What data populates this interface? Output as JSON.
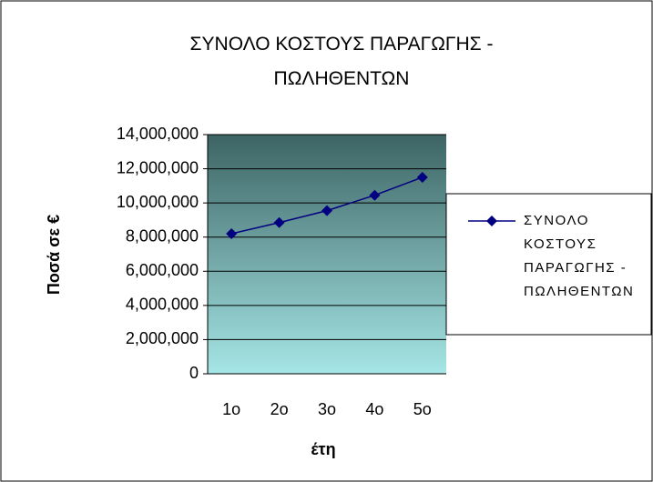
{
  "chart_data": {
    "type": "line",
    "title": "ΣΥΝΟΛΟ ΚΟΣΤΟΥΣ ΠΑΡΑΓΩΓΗΣ - ΠΩΛΗΘΕΝΤΩΝ",
    "x_label": "έτη",
    "y_label": "Ποσά σε €",
    "categories": [
      "1ο",
      "2ο",
      "3ο",
      "4ο",
      "5ο"
    ],
    "series": [
      {
        "name": "ΣΥΝΟΛΟ ΚΟΣΤΟΥΣ ΠΑΡΑΓΩΓΗΣ - ΠΩΛΗΘΕΝΤΩΝ",
        "color": "#000080",
        "values": [
          8200000,
          8850000,
          9550000,
          10450000,
          11500000
        ]
      }
    ],
    "ylim": [
      0,
      14000000
    ],
    "yticks": [
      0,
      {
        "value": 2000000,
        "label": "2,000,000"
      },
      {
        "value": 4000000,
        "label": "4,000,000"
      },
      {
        "value": 6000000,
        "label": "6,000,000"
      },
      {
        "value": 8000000,
        "label": "8,000,000"
      },
      {
        "value": 10000000,
        "label": "10,000,000"
      },
      {
        "value": 12000000,
        "label": "12,000,000"
      },
      {
        "value": 14000000,
        "label": "14,000,000"
      }
    ],
    "grid": true,
    "legend": "right"
  }
}
